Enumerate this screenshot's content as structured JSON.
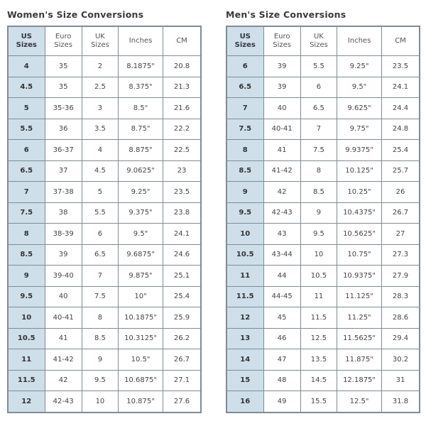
{
  "tables": [
    {
      "title": "Women's Size Conversions",
      "headers": [
        "US Sizes",
        "Euro Sizes",
        "UK Sizes",
        "Inches",
        "CM"
      ],
      "rows": [
        [
          "4",
          "35",
          "2",
          "8.1875\"",
          "20.8"
        ],
        [
          "4.5",
          "35",
          "2.5",
          "8.375\"",
          "21.3"
        ],
        [
          "5",
          "35-36",
          "3",
          "8.5\"",
          "21.6"
        ],
        [
          "5.5",
          "36",
          "3.5",
          "8.75\"",
          "22.2"
        ],
        [
          "6",
          "36-37",
          "4",
          "8.875\"",
          "22.5"
        ],
        [
          "6.5",
          "37",
          "4.5",
          "9.0625\"",
          "23"
        ],
        [
          "7",
          "37-38",
          "5",
          "9.25\"",
          "23.5"
        ],
        [
          "7.5",
          "38",
          "5.5",
          "9.375\"",
          "23.8"
        ],
        [
          "8",
          "38-39",
          "6",
          "9.5\"",
          "24.1"
        ],
        [
          "8.5",
          "39",
          "6.5",
          "9.6875\"",
          "24.6"
        ],
        [
          "9",
          "39-40",
          "7",
          "9.875\"",
          "25.1"
        ],
        [
          "9.5",
          "40",
          "7.5",
          "10\"",
          "25.4"
        ],
        [
          "10",
          "40-41",
          "8",
          "10.1875\"",
          "25.9"
        ],
        [
          "10.5",
          "41",
          "8.5",
          "10.3125\"",
          "26.2"
        ],
        [
          "11",
          "41-42",
          "9",
          "10.5\"",
          "26.7"
        ],
        [
          "11.5",
          "42",
          "9.5",
          "10.6875\"",
          "27.1"
        ],
        [
          "12",
          "42-43",
          "10",
          "10.875\"",
          "27.6"
        ]
      ]
    },
    {
      "title": "Men's Size Conversions",
      "headers": [
        "US Sizes",
        "Euro Sizes",
        "UK Sizes",
        "Inches",
        "CM"
      ],
      "rows": [
        [
          "6",
          "39",
          "5.5",
          "9.25\"",
          "23.5"
        ],
        [
          "6.5",
          "39",
          "6",
          "9.5\"",
          "24.1"
        ],
        [
          "7",
          "40",
          "6.5",
          "9.625\"",
          "24.4"
        ],
        [
          "7.5",
          "40-41",
          "7",
          "9.75\"",
          "24.8"
        ],
        [
          "8",
          "41",
          "7.5",
          "9.9375\"",
          "25.4"
        ],
        [
          "8.5",
          "41-42",
          "8",
          "10.125\"",
          "25.7"
        ],
        [
          "9",
          "42",
          "8.5",
          "10.25\"",
          "26"
        ],
        [
          "9.5",
          "42-43",
          "9",
          "10.4375\"",
          "26.7"
        ],
        [
          "10",
          "43",
          "9.5",
          "10.5625\"",
          "27"
        ],
        [
          "10.5",
          "43-44",
          "10",
          "10.75\"",
          "27.3"
        ],
        [
          "11",
          "44",
          "10.5",
          "10.9375\"",
          "27.9"
        ],
        [
          "11.5",
          "44-45",
          "11",
          "11.125\"",
          "28.3"
        ],
        [
          "12",
          "45",
          "11.5",
          "11.25\"",
          "28.6"
        ],
        [
          "13",
          "46",
          "12.5",
          "11.5625\"",
          "29.4"
        ],
        [
          "14",
          "47",
          "13.5",
          "11.875\"",
          "30.2"
        ],
        [
          "15",
          "48",
          "14.5",
          "12.1875\"",
          "31"
        ],
        [
          "16",
          "49",
          "15.5",
          "12.5\"",
          "31.8"
        ]
      ]
    }
  ],
  "colors": {
    "header_blue": "#cfdfea",
    "border": "#7e8c96"
  }
}
